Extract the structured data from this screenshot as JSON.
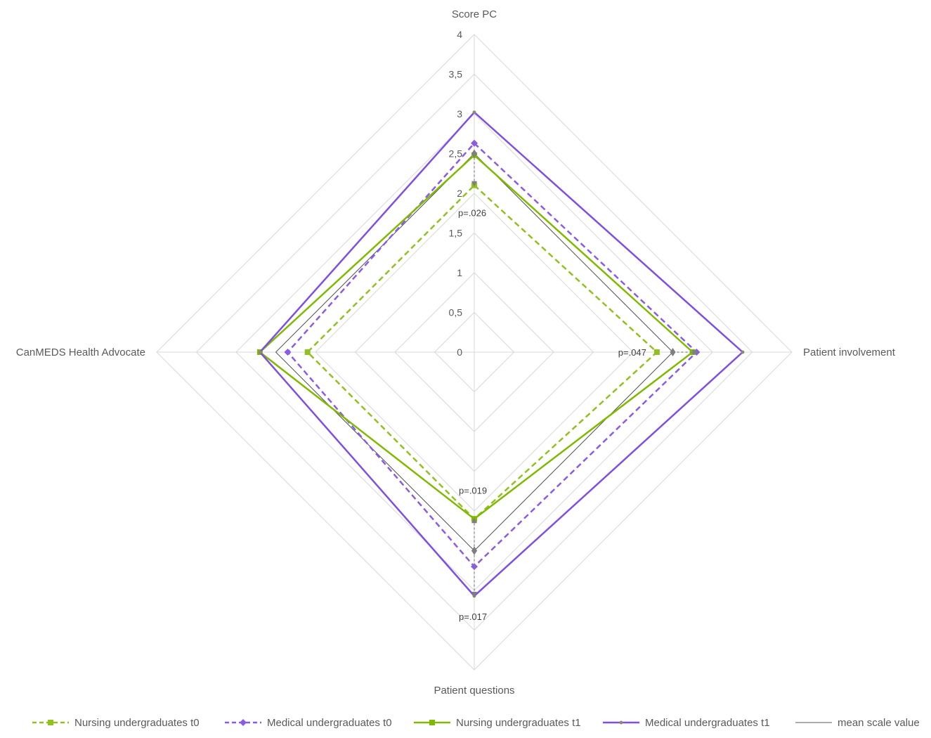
{
  "chart_data": {
    "type": "radar",
    "title": "",
    "axes": [
      "Score PC",
      "Patient involvement",
      "Patient questions",
      "CanMEDS Health Advocate"
    ],
    "r_ticks": [
      "0",
      "0,5",
      "1",
      "1,5",
      "2",
      "2,5",
      "3",
      "3,5",
      "4"
    ],
    "r_range": [
      0,
      4
    ],
    "grid": true,
    "legend_position": "bottom",
    "series": [
      {
        "name": "Nursing undergraduates t0",
        "values": [
          2.1,
          2.3,
          2.1,
          2.1
        ],
        "color": "#92c01f",
        "dash": "dashed",
        "marker": "square"
      },
      {
        "name": "Medical undergraduates t0",
        "values": [
          2.63,
          2.8,
          2.7,
          2.35
        ],
        "color": "#8b5be6",
        "dash": "dashed",
        "marker": "diamond"
      },
      {
        "name": "Nursing undergraduates t1",
        "values": [
          2.48,
          2.75,
          2.1,
          2.7
        ],
        "color": "#7fba00",
        "dash": "solid",
        "marker": "square"
      },
      {
        "name": "Medical undergraduates t1",
        "values": [
          3.02,
          3.38,
          3.07,
          2.7
        ],
        "color": "#7f4fe3",
        "dash": "solid",
        "marker": "dot"
      },
      {
        "name": "mean scale value",
        "values": [
          2.5,
          2.5,
          2.5,
          2.5
        ],
        "color": "#595959",
        "dash": "solid",
        "marker": "none"
      }
    ],
    "annotations": [
      {
        "text": "p=.026",
        "axis": "Score PC",
        "from": 2.5,
        "to": 2.1
      },
      {
        "text": "p=.047",
        "axis": "Patient involvement",
        "from": 2.5,
        "to": 2.8
      },
      {
        "text": "p=.019",
        "axis": "Patient questions",
        "from": 2.5,
        "to": 2.1
      },
      {
        "text": "p=.017",
        "axis": "Patient questions",
        "from": 2.5,
        "to": 3.07
      }
    ]
  }
}
